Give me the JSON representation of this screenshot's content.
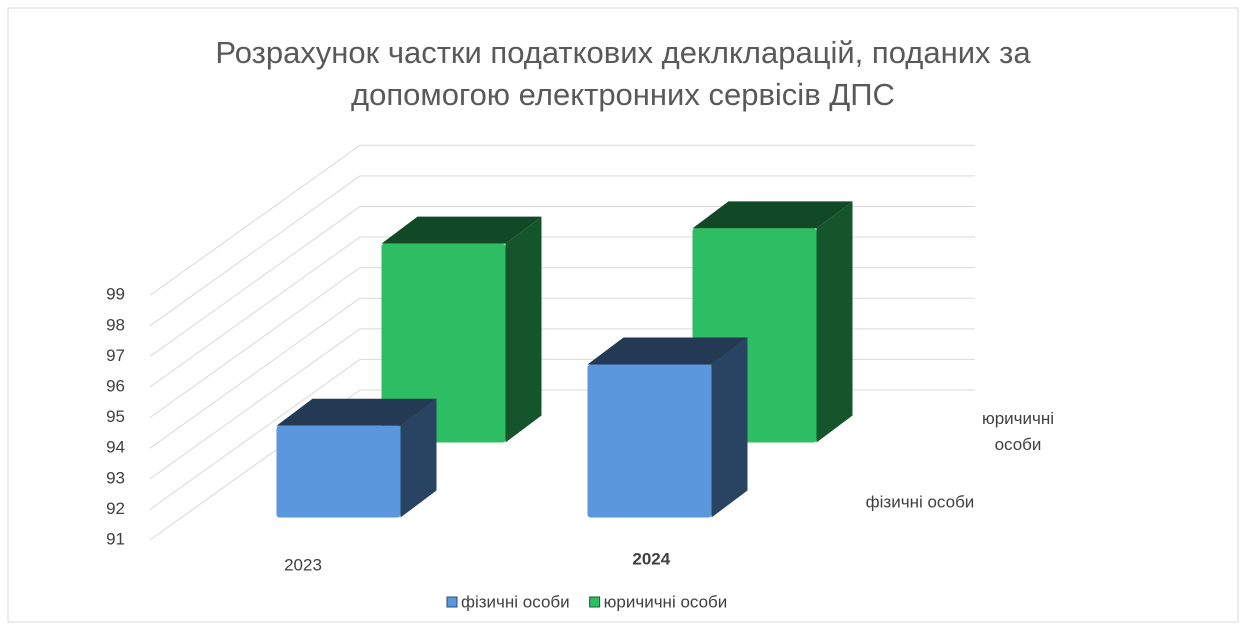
{
  "chart_data": {
    "type": "bar3d",
    "title": "Розрахунок частки податкових деклкларацій, поданих за допомогою електронних сервісів ДПС",
    "categories": [
      "2023",
      "2024"
    ],
    "series": [
      {
        "name": "фізичні особи",
        "color": "#5b97dc",
        "values": [
          94,
          96
        ]
      },
      {
        "name": "юричичні особи",
        "color": "#2dbd62",
        "values": [
          97.5,
          98
        ]
      }
    ],
    "ylim": [
      91,
      99
    ],
    "yticks": [
      91,
      92,
      93,
      94,
      95,
      96,
      97,
      98,
      99
    ],
    "grid": true,
    "legend": "bottom"
  }
}
